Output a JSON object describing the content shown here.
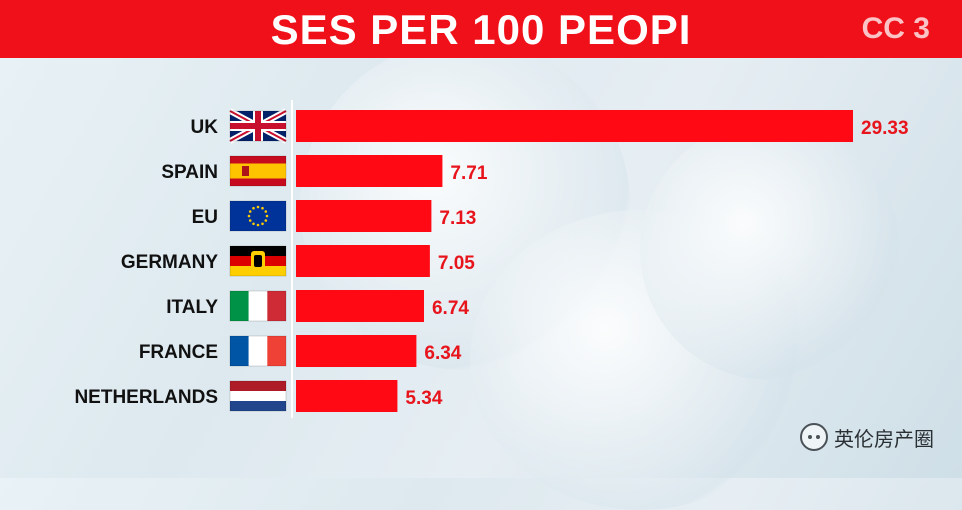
{
  "header": {
    "title": "SES PER 100 PEOPI",
    "partial_text": "CC 3"
  },
  "watermark": {
    "text": "英伦房产圈",
    "icon": "wechat-icon"
  },
  "colors": {
    "header": "#f0101a",
    "bar": "#ff0a14",
    "value_text": "#e8141c",
    "label_text": "#111111"
  },
  "chart_data": {
    "type": "bar",
    "orientation": "horizontal",
    "categories": [
      "UK",
      "SPAIN",
      "EU",
      "GERMANY",
      "ITALY",
      "FRANCE",
      "NETHERLANDS"
    ],
    "values": [
      29.33,
      7.71,
      7.13,
      7.05,
      6.74,
      6.34,
      5.34
    ],
    "value_labels": [
      "29.33",
      "7.71",
      "7.13",
      "7.05",
      "6.74",
      "6.34",
      "5.34"
    ],
    "flags": [
      "uk-flag-icon",
      "spain-flag-icon",
      "eu-flag-icon",
      "germany-flag-icon",
      "italy-flag-icon",
      "france-flag-icon",
      "netherlands-flag-icon"
    ],
    "xlim": [
      0,
      29.33
    ],
    "grid": false,
    "legend": "none"
  }
}
